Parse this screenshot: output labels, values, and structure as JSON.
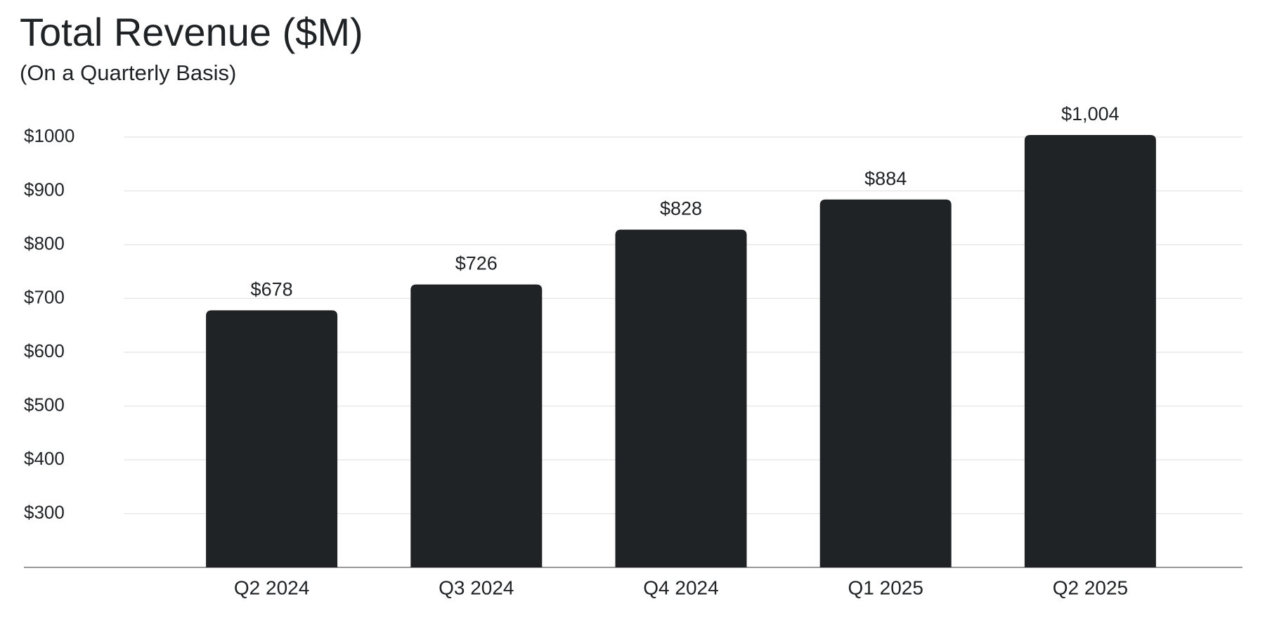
{
  "chart_data": {
    "type": "bar",
    "title": "Total Revenue ($M)",
    "subtitle": "(On a Quarterly Basis)",
    "categories": [
      "Q2 2024",
      "Q3 2024",
      "Q4 2024",
      "Q1 2025",
      "Q2 2025"
    ],
    "values": [
      678,
      726,
      828,
      884,
      1004
    ],
    "value_labels": [
      "$678",
      "$726",
      "$828",
      "$884",
      "$1,004"
    ],
    "color": "#202325",
    "ylim": [
      200,
      1000
    ],
    "yticks": [
      {
        "value": 300,
        "label": "$300"
      },
      {
        "value": 400,
        "label": "$400"
      },
      {
        "value": 500,
        "label": "$500"
      },
      {
        "value": 600,
        "label": "$600"
      },
      {
        "value": 700,
        "label": "$700"
      },
      {
        "value": 800,
        "label": "$800"
      },
      {
        "value": 900,
        "label": "$900"
      },
      {
        "value": 1000,
        "label": "$1000"
      }
    ],
    "grid": true
  }
}
